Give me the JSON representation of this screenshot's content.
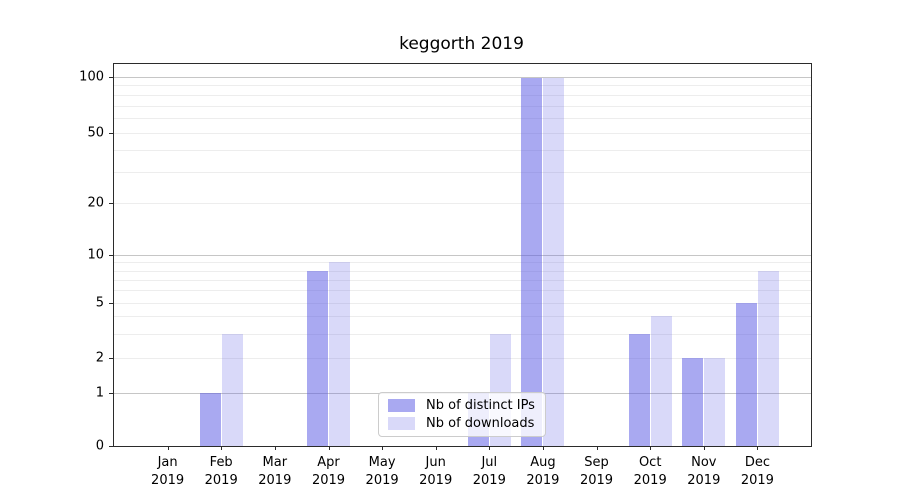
{
  "chart_data": {
    "type": "bar",
    "title": "keggorth 2019",
    "yscale": "symlog",
    "categories": [
      "Jan",
      "Feb",
      "Mar",
      "Apr",
      "May",
      "Jun",
      "Jul",
      "Aug",
      "Sep",
      "Oct",
      "Nov",
      "Dec"
    ],
    "year_label": "2019",
    "series": [
      {
        "name": "Nb of distinct IPs",
        "color": "rgba(84,84,227,0.5)",
        "values": [
          0,
          1,
          0,
          8,
          0,
          0,
          1,
          98,
          0,
          3,
          2,
          5
        ]
      },
      {
        "name": "Nb of downloads",
        "color": "rgba(84,84,227,0.22)",
        "values": [
          0,
          3,
          0,
          9,
          0,
          0,
          3,
          98,
          0,
          4,
          2,
          8
        ]
      }
    ],
    "y_ticks": [
      0,
      1,
      2,
      5,
      10,
      20,
      50,
      100
    ],
    "grid_major": [
      1,
      10,
      100
    ],
    "grid_minor": [
      2,
      3,
      4,
      5,
      6,
      7,
      8,
      9,
      20,
      30,
      40,
      50,
      60,
      70,
      80,
      90
    ],
    "ylim": [
      0,
      117
    ],
    "legend_position": "lower center",
    "grid": "on"
  }
}
